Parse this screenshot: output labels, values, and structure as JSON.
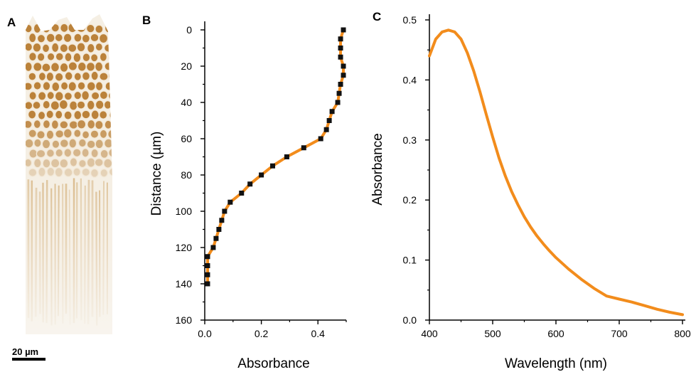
{
  "figure": {
    "panels": [
      {
        "letter": "A"
      },
      {
        "letter": "B"
      },
      {
        "letter": "C"
      }
    ],
    "micrograph": {
      "scale_bar_label": "20 µm",
      "pigment_color": "#b06e1c"
    },
    "colors": {
      "curve": "#f28c1c",
      "marker": "#111111",
      "axis": "#000000"
    }
  },
  "chart_data": [
    {
      "panel": "B",
      "type": "line",
      "xlabel": "Absorbance",
      "ylabel": "Distance (µm)",
      "xlim": [
        0,
        0.5
      ],
      "ylim": [
        160,
        0
      ],
      "y_inverted": true,
      "x_ticks": [
        "0.0",
        "0.2",
        "0.4"
      ],
      "x_tick_values": [
        0.0,
        0.2,
        0.4
      ],
      "y_ticks": [
        "0",
        "20",
        "40",
        "60",
        "80",
        "100",
        "120",
        "140",
        "160"
      ],
      "y_tick_values": [
        0,
        20,
        40,
        60,
        80,
        100,
        120,
        140,
        160
      ],
      "markers": "square",
      "series": [
        {
          "absorbance": [
            0.49,
            0.48,
            0.48,
            0.48,
            0.49,
            0.49,
            0.48,
            0.475,
            0.47,
            0.45,
            0.44,
            0.43,
            0.41,
            0.35,
            0.29,
            0.24,
            0.2,
            0.16,
            0.13,
            0.09,
            0.07,
            0.06,
            0.05,
            0.04,
            0.03,
            0.01,
            0.01,
            0.01,
            0.01
          ],
          "distance": [
            0,
            5,
            10,
            15,
            20,
            25,
            30,
            35,
            40,
            45,
            50,
            55,
            60,
            65,
            70,
            75,
            80,
            85,
            90,
            95,
            100,
            105,
            110,
            115,
            120,
            125,
            130,
            135,
            140
          ]
        }
      ]
    },
    {
      "panel": "C",
      "type": "line",
      "xlabel": "Wavelength (nm)",
      "ylabel": "Absorbance",
      "xlim": [
        400,
        800
      ],
      "ylim": [
        0,
        0.5
      ],
      "x_ticks": [
        "400",
        "500",
        "600",
        "700",
        "800"
      ],
      "x_tick_values": [
        400,
        500,
        600,
        700,
        800
      ],
      "y_ticks": [
        "0.0",
        "0.1",
        "0.2",
        "0.3",
        "0.4",
        "0.5"
      ],
      "y_tick_values": [
        0.0,
        0.1,
        0.2,
        0.3,
        0.4,
        0.5
      ],
      "series": [
        {
          "x": [
            400,
            410,
            420,
            430,
            440,
            450,
            460,
            470,
            480,
            490,
            500,
            510,
            520,
            530,
            540,
            550,
            560,
            570,
            580,
            590,
            600,
            620,
            640,
            660,
            680,
            700,
            720,
            740,
            760,
            780,
            800
          ],
          "y": [
            0.44,
            0.468,
            0.48,
            0.483,
            0.48,
            0.468,
            0.445,
            0.415,
            0.38,
            0.342,
            0.305,
            0.27,
            0.24,
            0.214,
            0.192,
            0.172,
            0.155,
            0.14,
            0.127,
            0.115,
            0.104,
            0.085,
            0.068,
            0.053,
            0.04,
            0.035,
            0.03,
            0.024,
            0.018,
            0.013,
            0.009
          ]
        }
      ]
    }
  ]
}
